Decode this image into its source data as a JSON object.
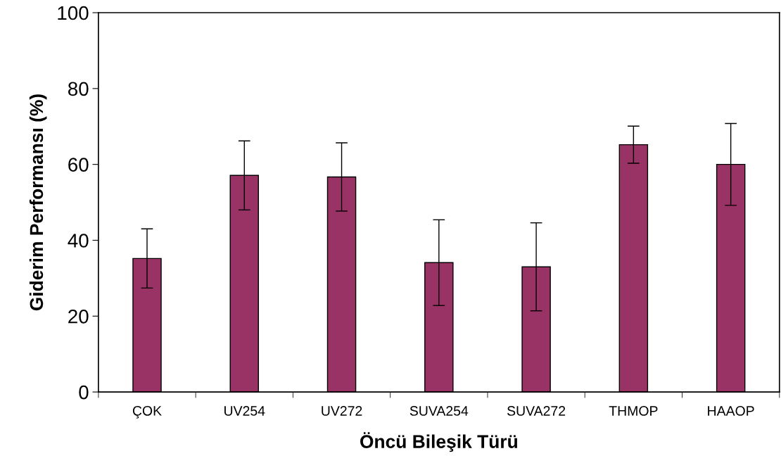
{
  "chart_data": {
    "type": "bar",
    "xlabel": "Öncü Bileşik Türü",
    "ylabel": "Giderim Performansı (%)",
    "categories": [
      "ÇOK",
      "UV254",
      "UV272",
      "SUVA254",
      "SUVA272",
      "THMOP",
      "HAAOP"
    ],
    "values": [
      35.2,
      57.1,
      56.7,
      34.1,
      33.0,
      65.2,
      60.0
    ],
    "errors": [
      7.8,
      9.1,
      9.0,
      11.3,
      11.6,
      4.9,
      10.8
    ],
    "color": "#993366",
    "ylim": [
      0,
      100
    ],
    "yticks": [
      0,
      20,
      40,
      60,
      80,
      100
    ],
    "grid": false
  }
}
